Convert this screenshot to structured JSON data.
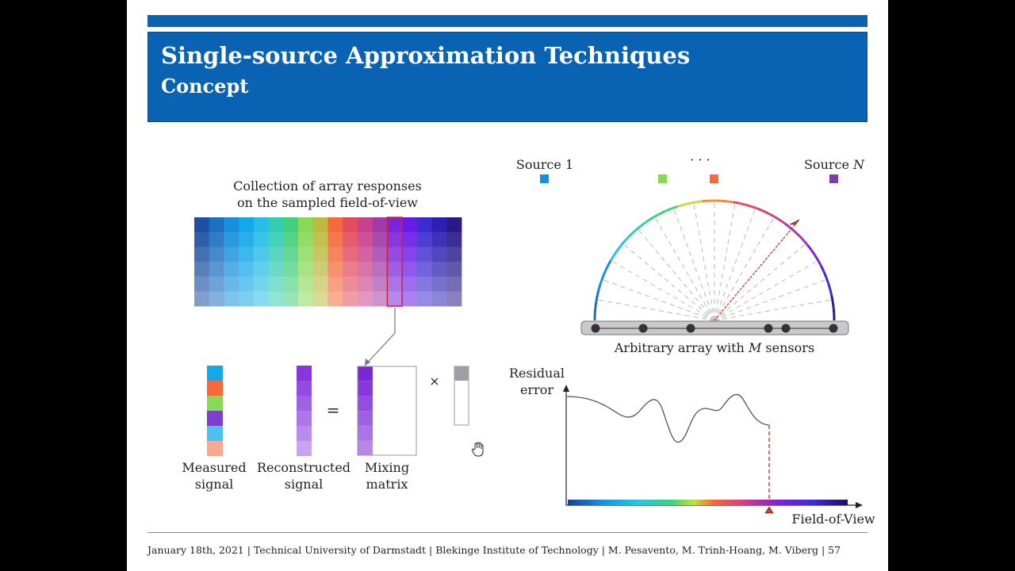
{
  "header": {
    "title": "Single-source Approximation Techniques",
    "subtitle": "Concept"
  },
  "collection": {
    "caption_line1": "Collection of array responses",
    "caption_line2": "on the sampled field-of-view",
    "column_colors": [
      "#1b4fa0",
      "#1e6fc0",
      "#1690dd",
      "#13a8e8",
      "#27bde6",
      "#33cdb4",
      "#42d07c",
      "#88d957",
      "#bdbb3f",
      "#f46a3a",
      "#e34b5f",
      "#c8418a",
      "#a03aa8",
      "#7c24d8",
      "#6a1ae6",
      "#3e2bd0",
      "#2e1fb0",
      "#281a8a"
    ],
    "highlight_column": 13
  },
  "measured": {
    "colors": [
      "#13a8e8",
      "#f46a3a",
      "#88d957",
      "#7c3fd0",
      "#4cc0ef",
      "#f7a890"
    ],
    "label_line1": "Measured",
    "label_line2": "signal"
  },
  "reconstructed": {
    "label_line1": "Reconstructed",
    "label_line2": "signal"
  },
  "mixing": {
    "label_line1": "Mixing",
    "label_line2": "matrix"
  },
  "operators": {
    "equals": "=",
    "times": "×"
  },
  "sources": {
    "first_label": "Source 1",
    "ellipsis": "· · ·",
    "last_label_prefix": "Source ",
    "last_label_var": "N",
    "square_colors": [
      "#1690dd",
      "#88d957",
      "#f46a3a",
      "#7c3fa8"
    ]
  },
  "array": {
    "caption_prefix": "Arbitrary array with ",
    "caption_var": "M",
    "caption_suffix": " sensors"
  },
  "residual": {
    "ylabel_line1": "Residual",
    "ylabel_line2": "error",
    "xlabel": "Field-of-View"
  },
  "footer": {
    "text": "January 18th, 2021 | Technical University of Darmstadt | Blekinge Institute of Technology | M. Pesavento, M. Trinh-Hoang, M. Viberg | 57"
  }
}
